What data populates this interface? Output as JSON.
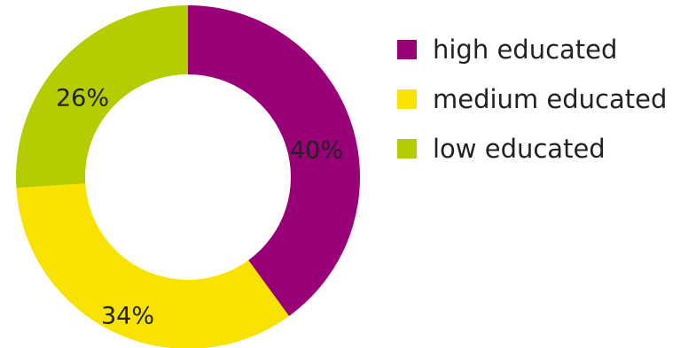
{
  "chart_data": {
    "type": "pie",
    "variant": "donut",
    "categories": [
      "high educated",
      "medium educated",
      "low educated"
    ],
    "values": [
      40,
      34,
      26
    ],
    "labels": [
      "40%",
      "34%",
      "26%"
    ],
    "colors": [
      "#990077",
      "#f8e300",
      "#b5cc00"
    ],
    "legend": "right"
  }
}
